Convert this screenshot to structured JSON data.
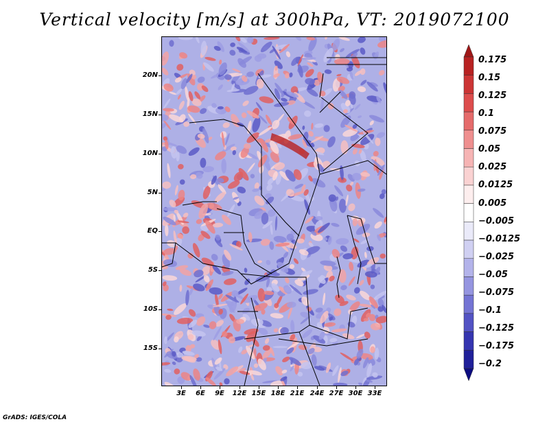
{
  "title": "Vertical velocity [m/s] at 300hPa, VT: 2019072100",
  "credit": "GrADS: IGES/COLA",
  "lat_labels": [
    "20N",
    "15N",
    "10N",
    "5N",
    "EQ",
    "5S",
    "10S",
    "15S"
  ],
  "lon_labels": [
    "3E",
    "6E",
    "9E",
    "12E",
    "15E",
    "18E",
    "21E",
    "24E",
    "27E",
    "30E",
    "33E"
  ],
  "colorbar": {
    "levels": [
      "0.175",
      "0.15",
      "0.125",
      "0.1",
      "0.075",
      "0.05",
      "0.025",
      "0.0125",
      "0.005",
      "−0.005",
      "−0.0125",
      "−0.025",
      "−0.05",
      "−0.075",
      "−0.1",
      "−0.125",
      "−0.175",
      "−0.2"
    ],
    "colors": [
      "#a01818",
      "#b82222",
      "#cc3535",
      "#dd4d4d",
      "#e56b6b",
      "#ef8f8f",
      "#f6b4b4",
      "#fad2d2",
      "#fdeeee",
      "#ffffff",
      "#eaeaf9",
      "#d0d0f2",
      "#b3b3ea",
      "#9595e0",
      "#7474d4",
      "#5353c4",
      "#3535b0",
      "#20209a",
      "#0c0c80"
    ]
  }
}
